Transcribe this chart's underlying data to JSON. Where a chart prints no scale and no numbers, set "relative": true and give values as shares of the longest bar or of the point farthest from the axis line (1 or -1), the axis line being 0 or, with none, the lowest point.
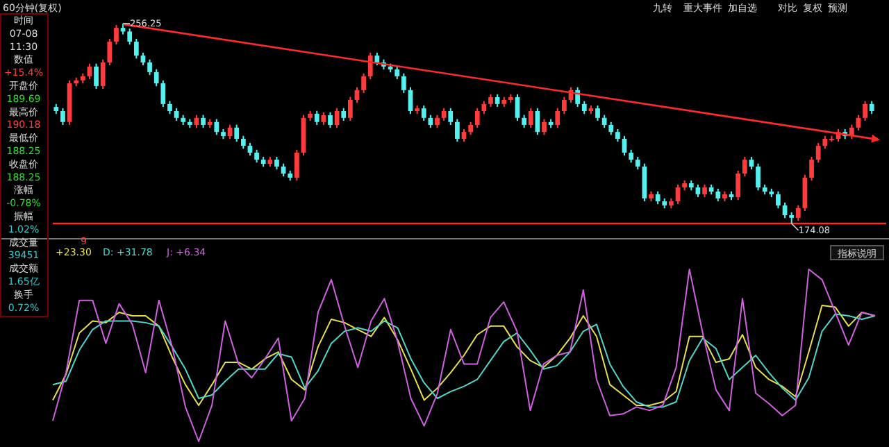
{
  "chart_data": [
    {
      "type": "candlestick",
      "title": "60分钟(复权)",
      "categories": [
        null,
        null,
        null,
        null,
        null,
        null,
        null,
        null,
        null,
        null,
        null,
        null,
        null,
        null,
        null,
        null,
        null,
        null,
        null,
        null,
        null,
        null,
        null,
        null,
        null,
        null,
        null,
        null,
        null,
        null,
        null,
        null,
        null,
        null,
        null,
        null,
        null,
        null,
        null,
        null,
        null,
        null,
        null,
        null,
        null,
        null,
        null,
        null,
        null,
        null,
        null,
        null,
        null,
        null,
        null,
        null,
        null,
        null,
        null,
        null,
        null,
        null,
        null,
        null,
        null,
        null,
        null,
        null,
        null,
        null,
        null,
        null,
        null,
        null,
        null,
        null,
        null,
        null,
        null,
        null,
        null,
        null,
        null,
        null,
        null,
        null,
        null,
        null,
        null,
        null,
        null,
        null,
        null,
        null,
        null,
        null,
        null,
        null,
        null,
        null,
        null,
        null,
        null,
        null,
        null,
        null,
        null,
        null,
        null,
        null,
        null,
        null,
        null,
        null,
        null,
        null,
        null,
        null,
        null,
        null,
        null,
        null,
        null
      ],
      "ohlc": [
        [
          222.0,
          223.2,
          219.1,
          220.3
        ],
        [
          220.3,
          221.5,
          214.6,
          215.8
        ],
        [
          215.8,
          232.9,
          214.6,
          231.7
        ],
        [
          231.7,
          234.1,
          230.5,
          232.9
        ],
        [
          232.9,
          235.8,
          231.7,
          234.6
        ],
        [
          234.6,
          239.8,
          233.4,
          238.6
        ],
        [
          238.6,
          239.8,
          229.4,
          230.6
        ],
        [
          230.6,
          241.5,
          229.4,
          240.3
        ],
        [
          240.3,
          250.0,
          239.1,
          248.8
        ],
        [
          248.8,
          255.7,
          247.6,
          254.5
        ],
        [
          254.5,
          256.25,
          251.8,
          253.0
        ],
        [
          253.0,
          254.2,
          247.6,
          248.8
        ],
        [
          248.8,
          250.0,
          241.9,
          243.1
        ],
        [
          243.1,
          244.3,
          239.1,
          240.3
        ],
        [
          240.3,
          241.5,
          235.1,
          236.3
        ],
        [
          236.3,
          237.5,
          230.5,
          231.7
        ],
        [
          231.7,
          232.9,
          222.0,
          223.2
        ],
        [
          223.2,
          224.4,
          219.1,
          220.3
        ],
        [
          220.3,
          221.5,
          216.3,
          217.5
        ],
        [
          217.5,
          218.7,
          214.6,
          215.8
        ],
        [
          215.8,
          217.0,
          213.4,
          214.6
        ],
        [
          214.6,
          218.7,
          213.4,
          217.5
        ],
        [
          217.5,
          218.7,
          213.4,
          214.6
        ],
        [
          214.6,
          217.0,
          213.4,
          215.8
        ],
        [
          215.8,
          217.0,
          210.5,
          211.7
        ],
        [
          211.7,
          212.9,
          208.8,
          210.0
        ],
        [
          210.0,
          214.7,
          208.8,
          213.5
        ],
        [
          213.5,
          214.7,
          207.7,
          208.9
        ],
        [
          208.9,
          210.1,
          204.8,
          206.0
        ],
        [
          206.0,
          207.2,
          202.0,
          203.2
        ],
        [
          203.2,
          204.4,
          199.1,
          200.3
        ],
        [
          200.3,
          201.5,
          197.4,
          198.6
        ],
        [
          198.6,
          201.5,
          197.4,
          200.3
        ],
        [
          200.3,
          201.5,
          196.3,
          197.5
        ],
        [
          197.5,
          198.7,
          193.4,
          194.6
        ],
        [
          194.6,
          195.8,
          191.7,
          192.9
        ],
        [
          192.9,
          204.4,
          191.7,
          203.2
        ],
        [
          203.2,
          218.7,
          202.0,
          217.5
        ],
        [
          217.5,
          220.4,
          216.3,
          219.2
        ],
        [
          219.2,
          220.4,
          214.6,
          215.8
        ],
        [
          215.8,
          219.8,
          214.6,
          218.6
        ],
        [
          218.6,
          219.8,
          213.4,
          214.6
        ],
        [
          214.6,
          221.5,
          213.4,
          220.3
        ],
        [
          220.3,
          221.5,
          216.3,
          217.5
        ],
        [
          217.5,
          226.1,
          216.3,
          224.9
        ],
        [
          224.9,
          230.1,
          223.7,
          228.9
        ],
        [
          228.9,
          235.8,
          227.7,
          234.6
        ],
        [
          234.6,
          244.3,
          233.4,
          243.1
        ],
        [
          243.1,
          244.3,
          239.1,
          240.3
        ],
        [
          240.3,
          241.5,
          237.4,
          238.6
        ],
        [
          238.6,
          239.8,
          236.2,
          237.4
        ],
        [
          237.4,
          238.6,
          233.4,
          234.6
        ],
        [
          234.6,
          235.8,
          227.7,
          228.9
        ],
        [
          228.9,
          230.1,
          219.1,
          220.3
        ],
        [
          220.3,
          222.6,
          219.1,
          221.4
        ],
        [
          221.4,
          222.6,
          216.3,
          217.5
        ],
        [
          217.5,
          218.7,
          213.4,
          214.6
        ],
        [
          214.6,
          218.7,
          213.4,
          217.5
        ],
        [
          217.5,
          221.5,
          216.3,
          220.3
        ],
        [
          220.3,
          221.5,
          214.6,
          215.8
        ],
        [
          215.8,
          217.0,
          207.7,
          208.9
        ],
        [
          208.9,
          212.9,
          207.7,
          211.7
        ],
        [
          211.7,
          215.8,
          210.5,
          214.6
        ],
        [
          214.6,
          221.5,
          213.4,
          220.3
        ],
        [
          220.3,
          224.4,
          219.1,
          223.2
        ],
        [
          223.2,
          227.2,
          222.0,
          226.0
        ],
        [
          226.0,
          227.2,
          222.0,
          223.2
        ],
        [
          223.2,
          226.1,
          222.0,
          224.9
        ],
        [
          224.9,
          227.2,
          223.7,
          226.0
        ],
        [
          226.0,
          227.2,
          216.3,
          217.5
        ],
        [
          217.5,
          218.7,
          213.4,
          214.6
        ],
        [
          214.6,
          221.5,
          213.4,
          220.3
        ],
        [
          220.3,
          221.5,
          210.5,
          211.7
        ],
        [
          211.7,
          217.0,
          210.5,
          215.8
        ],
        [
          215.8,
          217.0,
          213.4,
          214.6
        ],
        [
          214.6,
          221.5,
          213.4,
          220.3
        ],
        [
          220.3,
          226.1,
          219.1,
          224.9
        ],
        [
          224.9,
          230.1,
          223.7,
          228.9
        ],
        [
          228.9,
          230.1,
          222.0,
          223.2
        ],
        [
          223.2,
          224.4,
          219.1,
          220.3
        ],
        [
          220.3,
          222.6,
          219.1,
          221.4
        ],
        [
          221.4,
          222.6,
          216.3,
          217.5
        ],
        [
          217.5,
          218.7,
          213.4,
          214.6
        ],
        [
          214.6,
          215.8,
          210.5,
          211.7
        ],
        [
          211.7,
          212.9,
          207.7,
          208.9
        ],
        [
          208.9,
          210.1,
          202.0,
          203.2
        ],
        [
          203.2,
          204.4,
          199.1,
          200.3
        ],
        [
          200.3,
          201.5,
          196.3,
          197.5
        ],
        [
          197.5,
          198.7,
          183.2,
          184.4
        ],
        [
          184.4,
          187.3,
          183.2,
          186.1
        ],
        [
          186.1,
          187.3,
          182.0,
          183.2
        ],
        [
          183.2,
          184.4,
          180.3,
          181.5
        ],
        [
          181.5,
          184.4,
          180.3,
          183.2
        ],
        [
          183.2,
          190.1,
          182.0,
          188.9
        ],
        [
          188.9,
          191.8,
          187.7,
          190.6
        ],
        [
          190.6,
          191.8,
          187.7,
          188.9
        ],
        [
          188.9,
          190.1,
          184.9,
          186.1
        ],
        [
          186.1,
          190.1,
          184.9,
          188.9
        ],
        [
          188.9,
          190.1,
          186.0,
          187.2
        ],
        [
          187.2,
          188.4,
          183.2,
          184.4
        ],
        [
          184.4,
          187.3,
          183.2,
          186.1
        ],
        [
          186.1,
          187.3,
          183.7,
          184.9
        ],
        [
          184.9,
          195.8,
          183.7,
          194.6
        ],
        [
          194.6,
          201.5,
          193.4,
          200.3
        ],
        [
          200.3,
          201.5,
          196.3,
          197.5
        ],
        [
          197.5,
          198.7,
          187.7,
          188.9
        ],
        [
          188.9,
          190.1,
          186.0,
          187.2
        ],
        [
          187.2,
          188.4,
          184.9,
          186.1
        ],
        [
          186.1,
          187.3,
          180.3,
          181.5
        ],
        [
          181.5,
          182.7,
          176.3,
          177.5
        ],
        [
          177.5,
          178.7,
          174.08,
          176.4
        ],
        [
          176.4,
          181.6,
          175.2,
          180.4
        ],
        [
          180.4,
          194.1,
          179.2,
          192.9
        ],
        [
          192.9,
          201.5,
          191.7,
          200.3
        ],
        [
          200.3,
          207.2,
          199.1,
          206.0
        ],
        [
          206.0,
          210.1,
          204.8,
          208.9
        ],
        [
          208.9,
          210.1,
          207.7,
          208.9
        ],
        [
          208.9,
          212.9,
          207.7,
          211.7
        ],
        [
          211.7,
          212.9,
          208.8,
          210.0
        ],
        [
          210.0,
          214.7,
          208.8,
          213.5
        ],
        [
          213.5,
          218.7,
          212.3,
          217.5
        ],
        [
          217.5,
          224.4,
          216.3,
          223.2
        ],
        [
          223.2,
          224.4,
          219.1,
          220.3
        ]
      ],
      "series": [
        {
          "type": "line",
          "color": "#ff2a2a",
          "values": [
            null,
            null,
            null,
            null,
            null,
            null,
            null,
            null,
            null,
            null,
            256,
            null,
            null,
            null,
            null,
            null,
            null,
            null,
            null,
            null,
            null,
            null,
            null,
            null,
            null,
            null,
            null,
            null,
            null,
            null,
            null,
            null,
            null,
            null,
            null,
            null,
            null,
            null,
            null,
            null,
            null,
            null,
            null,
            null,
            null,
            null,
            null,
            null,
            null,
            null,
            null,
            null,
            null,
            null,
            null,
            null,
            null,
            null,
            null,
            null,
            null,
            null,
            null,
            null,
            null,
            null,
            null,
            null,
            null,
            null,
            null,
            null,
            null,
            null,
            null,
            null,
            null,
            null,
            null,
            null,
            null,
            null,
            null,
            null,
            null,
            null,
            null,
            null,
            null,
            null,
            null,
            null,
            null,
            null,
            null,
            null,
            null,
            null,
            null,
            null,
            null,
            null,
            null,
            null,
            null,
            null,
            null,
            null,
            null,
            null,
            null,
            null,
            null,
            null,
            null,
            null,
            null,
            null,
            null,
            null,
            null,
            null,
            209
          ]
        }
      ],
      "ref_lines": [
        {
          "axis": "y",
          "value": 174.08,
          "color": "#ff2a2a"
        }
      ],
      "annotations": [
        {
          "text": "256.25",
          "y": 256.25
        },
        {
          "text": "174.08",
          "y": 174.08
        },
        "时间",
        "07-08",
        "11:30",
        "数值",
        "+15.4%",
        "开盘价",
        "189.69",
        "最高价",
        "190.18",
        "最低价",
        "188.25",
        "收盘价",
        "188.25",
        "涨幅",
        "-0.78%",
        "振幅",
        "1.02%",
        "成交量",
        "39451",
        "成交额",
        "1.65亿",
        "换手",
        "0.72%",
        "9",
        "九转",
        "重大事件",
        "加自选",
        "对比",
        "复权",
        "预测"
      ]
    },
    {
      "type": "line",
      "relative": true,
      "categories": [
        null,
        null,
        null,
        null,
        null,
        null,
        null,
        null,
        null,
        null,
        null,
        null,
        null,
        null,
        null,
        null,
        null,
        null,
        null,
        null,
        null,
        null,
        null,
        null,
        null,
        null,
        null,
        null,
        null,
        null,
        null,
        null,
        null,
        null,
        null,
        null,
        null,
        null,
        null,
        null,
        null,
        null,
        null,
        null,
        null,
        null,
        null,
        null,
        null,
        null,
        null,
        null,
        null,
        null,
        null,
        null,
        null,
        null,
        null,
        null,
        null,
        null,
        null
      ],
      "series": [
        {
          "color": "#e8e04a",
          "values": [
            0.24,
            0.39,
            0.63,
            0.7,
            0.69,
            0.75,
            0.73,
            0.73,
            0.67,
            0.49,
            0.33,
            0.21,
            0.33,
            0.46,
            0.46,
            0.42,
            0.48,
            0.52,
            0.36,
            0.3,
            0.55,
            0.71,
            0.69,
            0.65,
            0.61,
            0.72,
            0.59,
            0.42,
            0.24,
            0.31,
            0.4,
            0.5,
            0.62,
            0.67,
            0.67,
            0.55,
            0.47,
            0.43,
            0.5,
            0.6,
            0.73,
            0.61,
            0.33,
            0.27,
            0.21,
            0.21,
            0.23,
            0.29,
            0.61,
            0.61,
            0.46,
            0.48,
            0.62,
            0.43,
            0.36,
            0.32,
            0.26,
            0.52,
            0.79,
            0.78,
            0.67,
            0.75,
            0.73
          ]
        },
        {
          "color": "#4fd8c8",
          "values": [
            0.33,
            0.35,
            0.53,
            0.65,
            0.7,
            0.7,
            0.7,
            0.69,
            0.67,
            0.55,
            0.42,
            0.25,
            0.27,
            0.35,
            0.42,
            0.42,
            0.42,
            0.51,
            0.49,
            0.31,
            0.41,
            0.57,
            0.64,
            0.66,
            0.64,
            0.7,
            0.66,
            0.48,
            0.34,
            0.25,
            0.29,
            0.32,
            0.36,
            0.47,
            0.58,
            0.63,
            0.53,
            0.42,
            0.44,
            0.52,
            0.64,
            0.68,
            0.45,
            0.32,
            0.23,
            0.2,
            0.2,
            0.23,
            0.47,
            0.6,
            0.54,
            0.36,
            0.43,
            0.5,
            0.4,
            0.31,
            0.24,
            0.37,
            0.64,
            0.74,
            0.73,
            0.71,
            0.73
          ]
        },
        {
          "color": "#d060e0",
          "values": [
            0.12,
            0.4,
            0.82,
            0.82,
            0.57,
            0.8,
            0.68,
            0.4,
            0.82,
            0.55,
            0.2,
            0,
            0.21,
            0.7,
            0.45,
            0.37,
            0.48,
            0.6,
            0.12,
            0.25,
            0.75,
            0.94,
            0.67,
            0.43,
            0.7,
            0.83,
            0.58,
            0.25,
            0.09,
            0.28,
            0.65,
            0.45,
            0.45,
            0.72,
            0.81,
            0.64,
            0.18,
            0.45,
            0.5,
            0.52,
            0.88,
            0.36,
            0.15,
            0.16,
            0.2,
            0.18,
            0.21,
            0.43,
            1,
            0.63,
            0.3,
            0.18,
            0.83,
            0.28,
            0.22,
            0.15,
            0.21,
            1,
            0.94,
            0.75,
            0.56,
            0.75,
            0.73
          ]
        }
      ],
      "annotations": [
        "+23.30",
        "D: +31.78",
        "J: +6.34",
        "指标说明"
      ]
    }
  ]
}
